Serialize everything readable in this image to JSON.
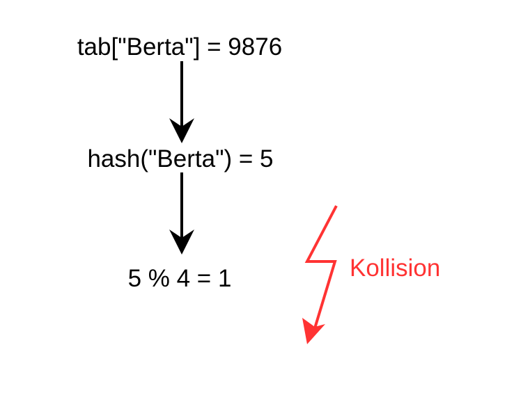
{
  "colors": {
    "text": "#000000",
    "arrow": "#000000",
    "collision": "#ff3333",
    "background": "#ffffff"
  },
  "steps": [
    {
      "label": "tab[\"Berta\"] = 9876"
    },
    {
      "label": "hash(\"Berta\") = 5"
    },
    {
      "label": "5 % 4 = 1"
    }
  ],
  "annotation": {
    "label": "Kollision",
    "icon": "lightning-bolt-icon"
  }
}
